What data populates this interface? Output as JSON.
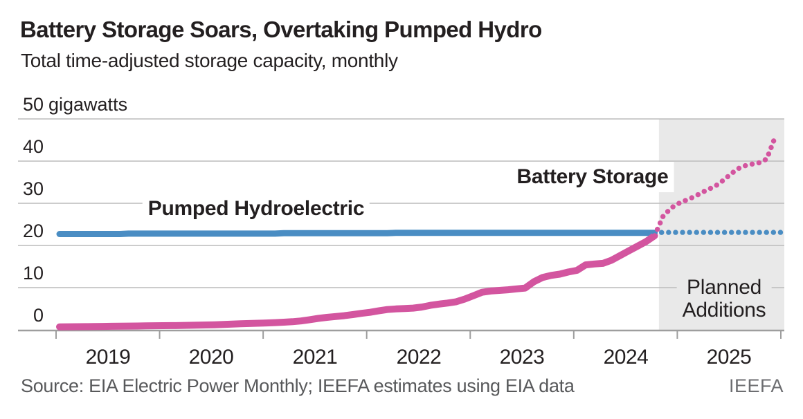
{
  "header": {
    "title": "Battery Storage Soars, Overtaking Pumped Hydro",
    "subtitle": "Total time-adjusted storage capacity, monthly"
  },
  "y_axis": {
    "unit": "gigawatts",
    "ticks": [
      "50",
      "40",
      "30",
      "20",
      "10",
      "0"
    ]
  },
  "x_axis": {
    "years": [
      "2019",
      "2020",
      "2021",
      "2022",
      "2023",
      "2024",
      "2025"
    ]
  },
  "labels": {
    "pumped": "Pumped Hydroelectric",
    "battery": "Battery Storage",
    "planned_line1": "Planned",
    "planned_line2": "Additions"
  },
  "footer": {
    "source": "Source: EIA Electric Power Monthly; IEEFA estimates using EIA data",
    "logo": "IEEFA"
  },
  "colors": {
    "battery_pink": "#d3559f",
    "pumped_blue": "#4a8dc3",
    "shade": "#e9e9e9",
    "grid": "#bcbcbc",
    "axis": "#9e9e9e",
    "text_dark": "#231f20",
    "source_gray": "#58595b"
  },
  "chart_data": {
    "type": "line",
    "title": "Battery Storage Soars, Overtaking Pumped Hydro",
    "subtitle": "Total time-adjusted storage capacity, monthly",
    "unit": "gigawatts",
    "ylim": [
      0,
      50
    ],
    "y_ticks": [
      0,
      10,
      20,
      30,
      40,
      50
    ],
    "x_years": [
      2019,
      2020,
      2021,
      2022,
      2023,
      2024,
      2025
    ],
    "months_start": "2019-01",
    "historical_end": "2024-10",
    "planned_start": "2024-11",
    "months_end": "2025-12",
    "planned_region_label": "Planned Additions",
    "grid_on": true,
    "series": [
      {
        "name": "Pumped Hydroelectric",
        "color": "#4a8dc3",
        "historical": [
          22.7,
          22.7,
          22.7,
          22.7,
          22.7,
          22.7,
          22.7,
          22.7,
          22.8,
          22.8,
          22.8,
          22.8,
          22.8,
          22.8,
          22.8,
          22.8,
          22.8,
          22.8,
          22.8,
          22.8,
          22.8,
          22.8,
          22.8,
          22.8,
          22.8,
          22.8,
          22.9,
          22.9,
          22.9,
          22.9,
          22.9,
          22.9,
          22.9,
          22.9,
          22.9,
          22.9,
          22.9,
          22.9,
          22.9,
          23.0,
          23.0,
          23.0,
          23.0,
          23.0,
          23.0,
          23.0,
          23.0,
          23.0,
          23.0,
          23.0,
          23.0,
          23.0,
          23.0,
          23.0,
          23.0,
          23.0,
          23.0,
          23.0,
          23.0,
          23.0,
          23.0,
          23.0,
          23.0,
          23.0,
          23.0,
          23.0,
          23.0,
          23.0,
          23.0,
          23.0
        ],
        "planned": [
          23.1,
          23.1,
          23.1,
          23.1,
          23.1,
          23.1,
          23.1,
          23.1,
          23.1,
          23.1,
          23.1,
          23.1,
          23.1,
          23.1
        ]
      },
      {
        "name": "Battery Storage",
        "color": "#d3559f",
        "historical": [
          0.7,
          0.72,
          0.74,
          0.76,
          0.78,
          0.8,
          0.83,
          0.86,
          0.88,
          0.9,
          0.93,
          0.96,
          0.98,
          1.0,
          1.02,
          1.06,
          1.1,
          1.15,
          1.2,
          1.27,
          1.34,
          1.42,
          1.5,
          1.55,
          1.62,
          1.7,
          1.8,
          1.92,
          2.1,
          2.4,
          2.7,
          2.95,
          3.15,
          3.35,
          3.6,
          3.9,
          4.15,
          4.5,
          4.8,
          4.95,
          5.05,
          5.15,
          5.4,
          5.8,
          6.1,
          6.35,
          6.65,
          7.3,
          8.1,
          8.9,
          9.2,
          9.35,
          9.5,
          9.7,
          9.9,
          11.4,
          12.4,
          12.9,
          13.2,
          13.7,
          14.1,
          15.4,
          15.6,
          15.75,
          16.5,
          17.6,
          18.7,
          19.8,
          20.9,
          22.3
        ],
        "planned": [
          27.0,
          29.0,
          30.2,
          31.0,
          32.0,
          33.1,
          34.0,
          35.5,
          37.2,
          38.6,
          39.2,
          39.5,
          40.5,
          45.8
        ]
      }
    ]
  }
}
